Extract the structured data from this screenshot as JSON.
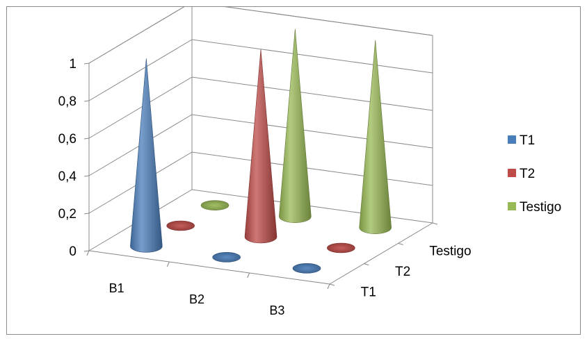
{
  "chart_data": {
    "type": "3d-cone",
    "categories": [
      "B1",
      "B2",
      "B3"
    ],
    "series_labels": [
      "T1",
      "T2",
      "Testigo"
    ],
    "series": [
      {
        "name": "T1",
        "values": [
          1,
          0,
          0
        ],
        "color": "#4a7ebb"
      },
      {
        "name": "T2",
        "values": [
          0,
          1,
          0
        ],
        "color": "#be4b48"
      },
      {
        "name": "Testigo",
        "values": [
          0,
          1,
          1
        ],
        "color": "#98b954"
      }
    ],
    "yticks": [
      "0",
      "0,2",
      "0,4",
      "0,6",
      "0,8",
      "1"
    ],
    "ylim": [
      0,
      1
    ],
    "grid": true,
    "legend_position": "right"
  }
}
